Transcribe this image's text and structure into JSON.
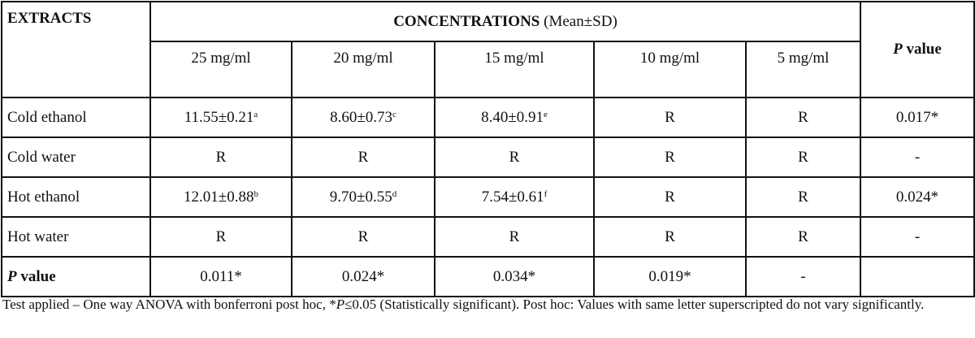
{
  "table": {
    "extracts_header": "EXTRACTS",
    "concentrations_header": {
      "bold": "CONCENTRATIONS",
      "normal": " (Mean±SD)"
    },
    "pvalue_header": {
      "italic": "P",
      "normal": " value"
    },
    "columns": [
      "25 mg/ml",
      "20 mg/ml",
      "15 mg/ml",
      "10 mg/ml",
      "5 mg/ml"
    ],
    "rows": [
      {
        "label": "Cold ethanol",
        "cells": [
          {
            "v": "11.55±0.21",
            "sup": "a"
          },
          {
            "v": "8.60±0.73",
            "sup": "c"
          },
          {
            "v": "8.40±0.91",
            "sup": "e"
          },
          {
            "v": "R",
            "sup": ""
          },
          {
            "v": "R",
            "sup": ""
          }
        ],
        "p": "0.017*"
      },
      {
        "label": "Cold water",
        "cells": [
          {
            "v": "R",
            "sup": ""
          },
          {
            "v": "R",
            "sup": ""
          },
          {
            "v": "R",
            "sup": ""
          },
          {
            "v": "R",
            "sup": ""
          },
          {
            "v": "R",
            "sup": ""
          }
        ],
        "p": "-"
      },
      {
        "label": "Hot ethanol",
        "cells": [
          {
            "v": "12.01±0.88",
            "sup": "b"
          },
          {
            "v": "9.70±0.55",
            "sup": "d"
          },
          {
            "v": "7.54±0.61",
            "sup": "f"
          },
          {
            "v": "R",
            "sup": ""
          },
          {
            "v": "R",
            "sup": ""
          }
        ],
        "p": "0.024*"
      },
      {
        "label": "Hot water",
        "cells": [
          {
            "v": "R",
            "sup": ""
          },
          {
            "v": "R",
            "sup": ""
          },
          {
            "v": "R",
            "sup": ""
          },
          {
            "v": "R",
            "sup": ""
          },
          {
            "v": "R",
            "sup": ""
          }
        ],
        "p": "-"
      }
    ],
    "pvalue_row": {
      "label_italic": "P",
      "label_normal": " value",
      "cells": [
        "0.011*",
        "0.024*",
        "0.034*",
        "0.019*",
        "-"
      ],
      "p": ""
    }
  },
  "caption": {
    "before_italic": "Test applied – One way ANOVA with bonferroni post hoc, *",
    "italic": "P",
    "after_italic": "≤0.05 (Statistically significant). Post hoc: Values with same letter superscripted do not vary significantly."
  }
}
